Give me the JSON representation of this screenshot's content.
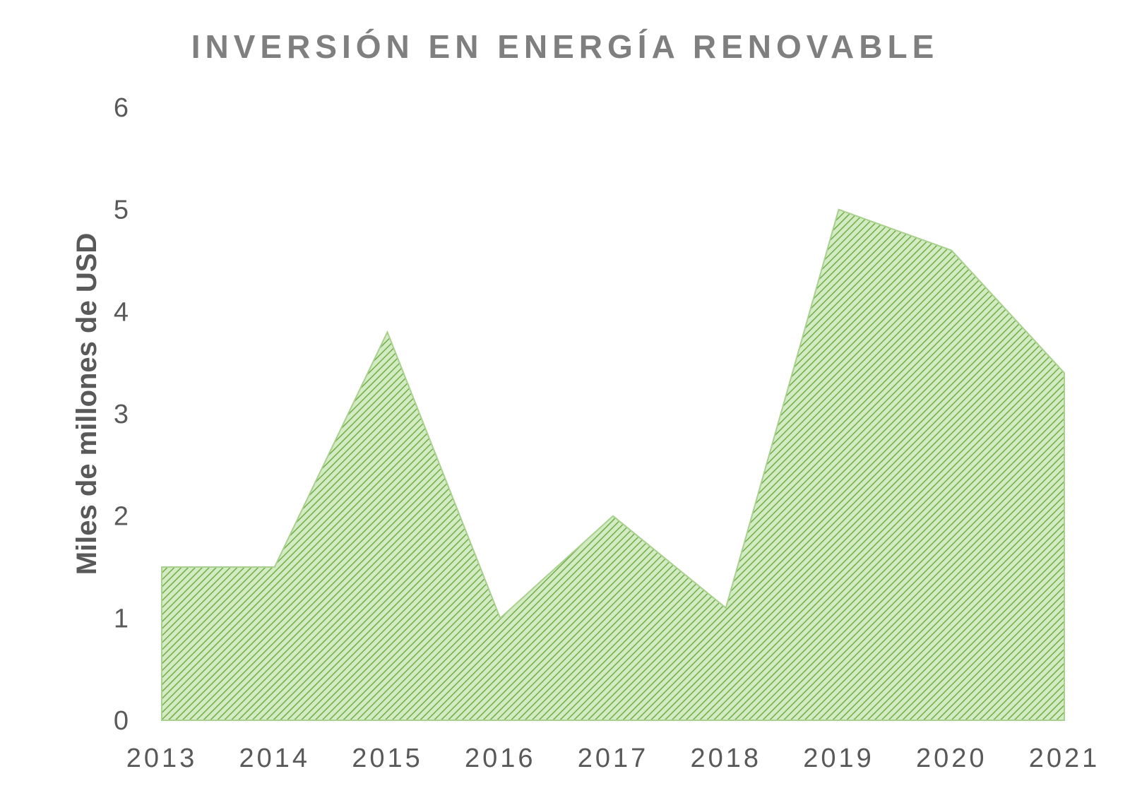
{
  "chart_data": {
    "type": "area",
    "title": "INVERSIÓN EN ENERGÍA RENOVABLE",
    "xlabel": "",
    "ylabel": "Miles de millones de USD",
    "x": [
      "2013",
      "2014",
      "2015",
      "2016",
      "2017",
      "2018",
      "2019",
      "2020",
      "2021"
    ],
    "series": [
      {
        "values": [
          1.5,
          1.5,
          3.8,
          1.0,
          2.0,
          1.1,
          5.0,
          4.6,
          3.4
        ]
      }
    ],
    "ylim": [
      0,
      6
    ],
    "yticks": [
      "0",
      "1",
      "2",
      "3",
      "4",
      "5",
      "6"
    ],
    "grid": false,
    "legend": "none",
    "fill_color": "#a9d08e",
    "stripe_color": "#70ad47"
  }
}
